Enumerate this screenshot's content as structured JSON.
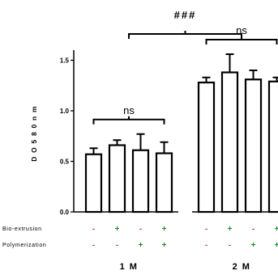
{
  "chart_data": {
    "type": "bar",
    "ylabel": "D O 5 8 0 n m",
    "ylim": [
      0,
      1.6
    ],
    "yticks": [
      "0.0",
      "0.5",
      "1.0",
      "1.5"
    ],
    "error_bars": true,
    "groups": [
      {
        "label": "1 M",
        "values": [
          0.57,
          0.66,
          0.61,
          0.58
        ],
        "errors": [
          0.06,
          0.05,
          0.16,
          0.11
        ],
        "comparison": "ns"
      },
      {
        "label": "2 M",
        "values": [
          1.28,
          1.38,
          1.31,
          1.29
        ],
        "errors": [
          0.05,
          0.18,
          0.09,
          0.04
        ],
        "comparison": "ns"
      }
    ],
    "conditions": [
      {
        "label": "Bio-extrusion",
        "values": [
          "-",
          "+",
          "-",
          "+"
        ]
      },
      {
        "label": "Polymerization",
        "values": [
          "-",
          "-",
          "+",
          "+"
        ]
      }
    ],
    "between_groups": "###",
    "colors": {
      "bar_fill": "#ffffff",
      "bar_stroke": "#000000",
      "minus": "#e0322c",
      "plus": "#1a8a2e"
    }
  }
}
